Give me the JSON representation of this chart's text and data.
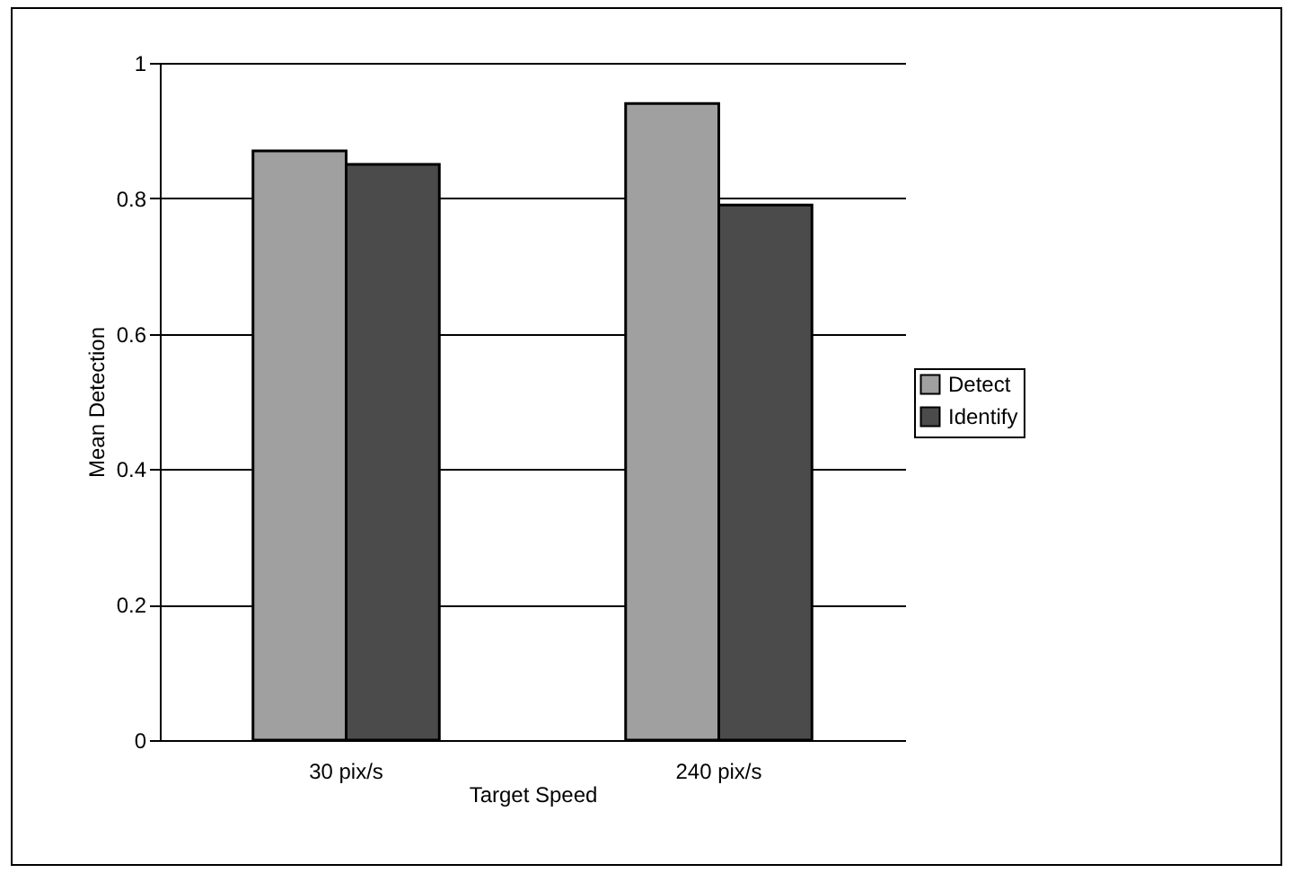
{
  "chart_data": {
    "type": "bar",
    "xlabel": "Target Speed",
    "ylabel": "Mean Detection",
    "categories": [
      "30 pix/s",
      "240 pix/s"
    ],
    "series": [
      {
        "name": "Detect",
        "color": "#a0a0a0",
        "values": [
          0.87,
          0.94
        ]
      },
      {
        "name": "Identify",
        "color": "#4b4b4b",
        "values": [
          0.85,
          0.79
        ]
      }
    ],
    "ylim": [
      0,
      1
    ],
    "yticks": [
      0,
      0.2,
      0.4,
      0.6,
      0.8,
      1
    ],
    "grid": "y",
    "legend": "right"
  }
}
